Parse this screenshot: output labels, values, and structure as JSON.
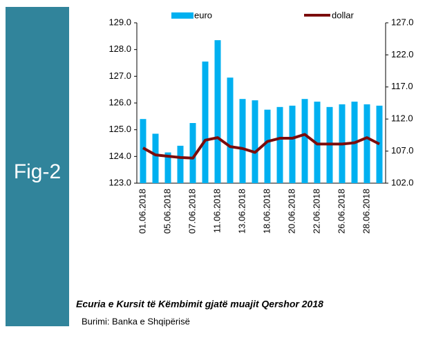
{
  "sidebar_label": "Fig-2",
  "caption": "Ecuria e Kursit të Këmbimit gjatë muajit Qershor 2018",
  "source": "Burimi: Banka e Shqipërisë",
  "chart_data": {
    "type": "bar_line",
    "categories": [
      "01.06.2018",
      null,
      "05.06.2018",
      null,
      "07.06.2018",
      null,
      "11.06.2018",
      null,
      "13.06.2018",
      null,
      "18.06.2018",
      null,
      "20.06.2018",
      null,
      "22.06.2018",
      null,
      "26.06.2018",
      null,
      "28.06.2018",
      null
    ],
    "series": [
      {
        "name": "euro",
        "type": "bar",
        "color": "#00b0f0",
        "values": [
          125.4,
          124.85,
          124.15,
          124.4,
          125.25,
          127.55,
          128.35,
          126.95,
          126.15,
          126.1,
          125.75,
          125.85,
          125.9,
          126.15,
          126.05,
          125.85,
          125.95,
          126.05,
          125.95,
          125.9
        ]
      },
      {
        "name": "dollar",
        "type": "line",
        "axis": "y2",
        "color": "#7b0c0c",
        "values": [
          107.5,
          106.4,
          106.2,
          106.0,
          105.9,
          108.7,
          109.1,
          107.7,
          107.4,
          106.8,
          108.5,
          109.0,
          109.0,
          109.6,
          108.1,
          108.1,
          108.1,
          108.3,
          109.1,
          108.1
        ]
      }
    ],
    "ylim": [
      123,
      129
    ],
    "yticks": [
      {
        "value": 123,
        "label": "123.0"
      },
      {
        "value": 124,
        "label": "124.0"
      },
      {
        "value": 125,
        "label": "125.0"
      },
      {
        "value": 126,
        "label": "126.0"
      },
      {
        "value": 127,
        "label": "127.0"
      },
      {
        "value": 128,
        "label": "128.0"
      },
      {
        "value": 129,
        "label": "129.0"
      }
    ],
    "y2lim": [
      102,
      127
    ],
    "y2ticks": [
      {
        "value": 102,
        "label": "102.0"
      },
      {
        "value": 107,
        "label": "107.0"
      },
      {
        "value": 112,
        "label": "112.0"
      },
      {
        "value": 117,
        "label": "117.0"
      },
      {
        "value": 122,
        "label": "122.0"
      },
      {
        "value": 127,
        "label": "127.0"
      }
    ],
    "legend": "top"
  }
}
